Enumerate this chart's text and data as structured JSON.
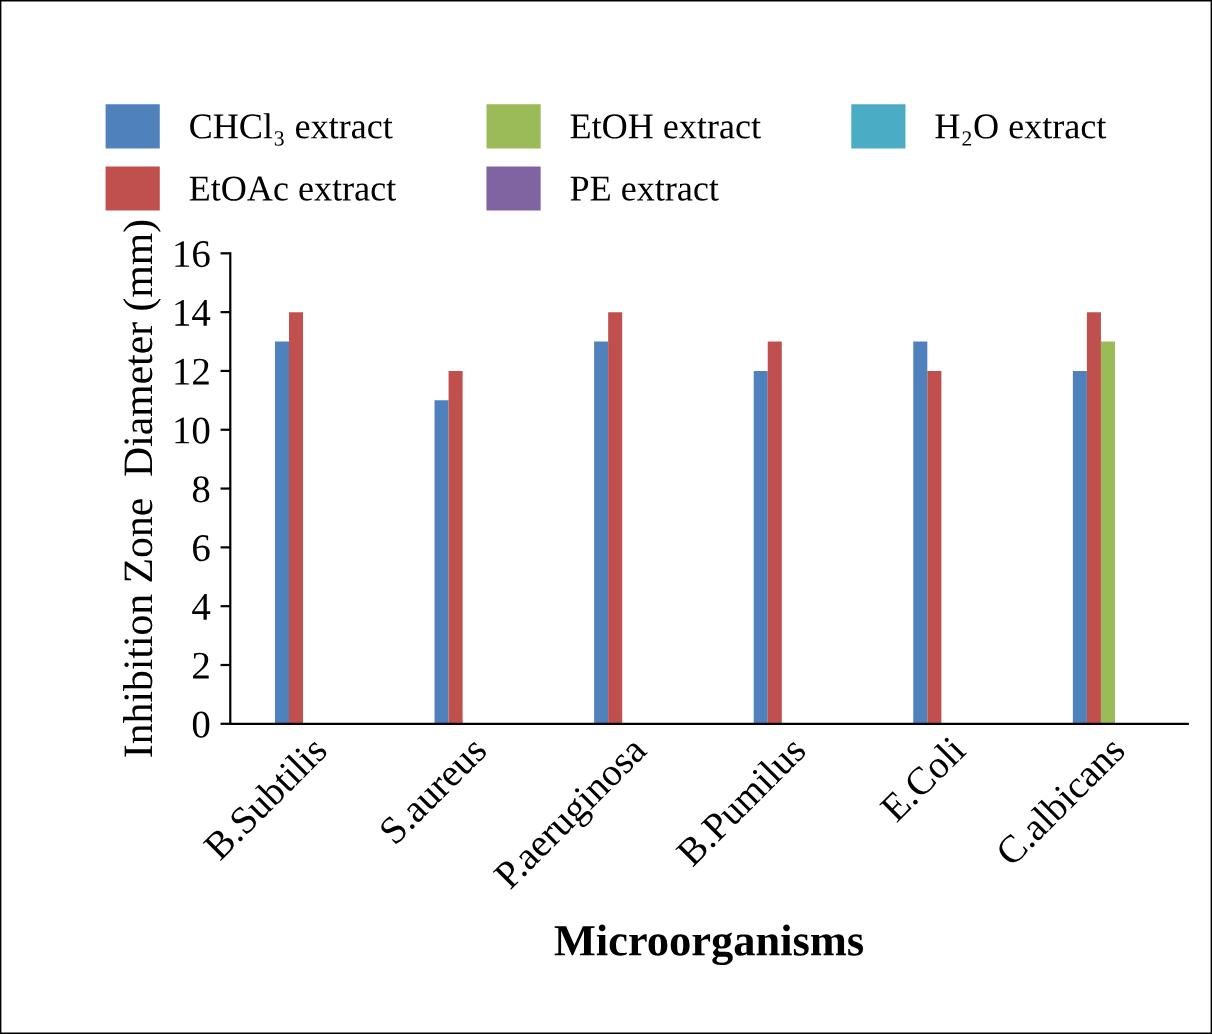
{
  "chart_data": {
    "type": "bar",
    "xlabel": "Microorganisms",
    "ylabel": "Inhibition Zone  Diameter (mm)",
    "categories": [
      "B.Subtilis",
      "S.aureus",
      "P.aeruginosa",
      "B.Pumilus",
      "E.Coli",
      "C.albicans"
    ],
    "series": [
      {
        "name": "CHCl₃ extract",
        "color": "#4f81bd",
        "values": [
          13,
          11,
          13,
          12,
          13,
          12
        ]
      },
      {
        "name": "EtOAc extract",
        "color": "#c0504d",
        "values": [
          14,
          12,
          14,
          13,
          12,
          14
        ]
      },
      {
        "name": "EtOH extract",
        "color": "#9bbb59",
        "values": [
          null,
          null,
          null,
          null,
          null,
          13
        ]
      },
      {
        "name": "PE extract",
        "color": "#8064a2",
        "values": [
          null,
          null,
          null,
          null,
          null,
          null
        ]
      },
      {
        "name": "H₂O extract",
        "color": "#4bacc6",
        "values": [
          null,
          null,
          null,
          null,
          null,
          null
        ]
      }
    ],
    "ylim": [
      0,
      16
    ],
    "yticks": [
      0,
      2,
      4,
      6,
      8,
      10,
      12,
      14,
      16
    ],
    "grid": false,
    "legend": "top"
  }
}
